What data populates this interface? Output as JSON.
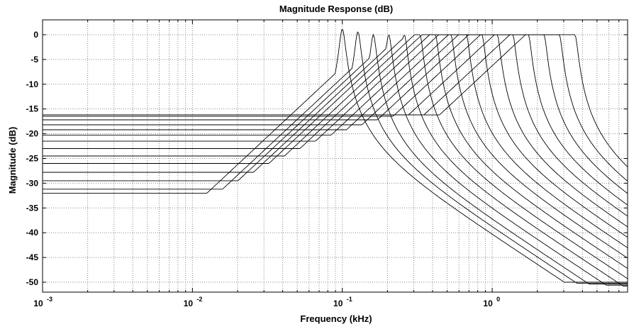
{
  "chart_data": {
    "type": "line",
    "title": "Magnitude Response (dB)",
    "xlabel": "Frequency (kHz)",
    "ylabel": "Magnitude (dB)",
    "xscale": "log",
    "xlim": [
      0.001,
      8
    ],
    "ylim": [
      -52,
      3
    ],
    "xticks": [
      {
        "value": 0.001,
        "base": "10",
        "exp": "-3"
      },
      {
        "value": 0.01,
        "base": "10",
        "exp": "-2"
      },
      {
        "value": 0.1,
        "base": "10",
        "exp": "-1"
      },
      {
        "value": 1,
        "base": "10",
        "exp": "0"
      }
    ],
    "yticks": [
      0,
      -5,
      -10,
      -15,
      -20,
      -25,
      -30,
      -35,
      -40,
      -45,
      -50
    ],
    "grid": true,
    "grid_style": "dotted",
    "line_color": "#000000",
    "series": [
      {
        "center_khz": 0.1,
        "peak_db": 1.2,
        "floor_db": -32.0
      },
      {
        "center_khz": 0.127,
        "peak_db": 0.6,
        "floor_db": -31.2
      },
      {
        "center_khz": 0.161,
        "peak_db": 0.0,
        "floor_db": -29.5
      },
      {
        "center_khz": 0.204,
        "peak_db": 0.0,
        "floor_db": -27.8
      },
      {
        "center_khz": 0.259,
        "peak_db": 0.0,
        "floor_db": -26.0
      },
      {
        "center_khz": 0.329,
        "peak_db": 0.0,
        "floor_db": -24.5
      },
      {
        "center_khz": 0.417,
        "peak_db": 0.0,
        "floor_db": -23.0
      },
      {
        "center_khz": 0.53,
        "peak_db": 0.0,
        "floor_db": -21.5
      },
      {
        "center_khz": 0.672,
        "peak_db": 0.0,
        "floor_db": -20.3
      },
      {
        "center_khz": 0.853,
        "peak_db": 0.0,
        "floor_db": -19.2
      },
      {
        "center_khz": 1.08,
        "peak_db": 0.0,
        "floor_db": -18.2
      },
      {
        "center_khz": 1.37,
        "peak_db": 0.0,
        "floor_db": -17.2
      },
      {
        "center_khz": 1.74,
        "peak_db": 0.0,
        "floor_db": -16.5
      },
      {
        "center_khz": 2.21,
        "peak_db": 0.0,
        "floor_db": -16.2
      },
      {
        "center_khz": 2.8,
        "peak_db": 0.0,
        "floor_db": -16.2
      },
      {
        "center_khz": 3.56,
        "peak_db": 0.0,
        "floor_db": -16.2
      }
    ]
  }
}
